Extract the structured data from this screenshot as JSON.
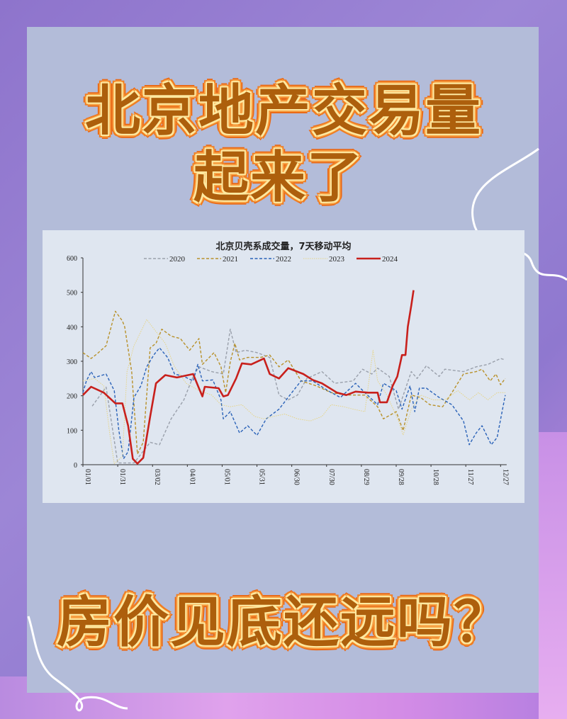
{
  "headline": {
    "line1": "北京地产交易量",
    "line2": "起来了",
    "line3": "房价见底还远吗？"
  },
  "colors": {
    "headline_text": "#ad5f0c",
    "headline_outline": "#ea6a17",
    "panel": "#b3bcd9",
    "background": "#8e74cc"
  },
  "chart_data": {
    "type": "line",
    "title": "北京贝壳系成交量，7天移动平均",
    "xlabel": "",
    "ylabel": "",
    "ylim": [
      0,
      600
    ],
    "yticks": [
      0,
      100,
      200,
      300,
      400,
      500,
      600
    ],
    "xticks": [
      "01/01",
      "01/31",
      "03/02",
      "04/01",
      "05/01",
      "05/31",
      "06/30",
      "07/30",
      "08/29",
      "09/28",
      "10/28",
      "11/27",
      "12/27"
    ],
    "grid": false,
    "legend": "top",
    "series": [
      {
        "name": "2020",
        "color": "#9aa0ab",
        "style": "dashed",
        "points": [
          [
            "01/09",
            170
          ],
          [
            "01/21",
            225
          ],
          [
            "01/31",
            5
          ],
          [
            "02/14",
            5
          ],
          [
            "02/28",
            65
          ],
          [
            "03/08",
            58
          ],
          [
            "03/18",
            133
          ],
          [
            "03/29",
            188
          ],
          [
            "04/06",
            256
          ],
          [
            "04/11",
            284
          ],
          [
            "04/22",
            270
          ],
          [
            "05/02",
            263
          ],
          [
            "05/08",
            393
          ],
          [
            "05/13",
            325
          ],
          [
            "05/21",
            332
          ],
          [
            "05/31",
            325
          ],
          [
            "06/11",
            311
          ],
          [
            "06/19",
            202
          ],
          [
            "06/27",
            188
          ],
          [
            "07/05",
            202
          ],
          [
            "07/13",
            250
          ],
          [
            "07/26",
            270
          ],
          [
            "08/06",
            236
          ],
          [
            "08/22",
            243
          ],
          [
            "08/30",
            277
          ],
          [
            "09/07",
            263
          ],
          [
            "09/12",
            280
          ],
          [
            "09/22",
            256
          ],
          [
            "09/30",
            161
          ],
          [
            "10/11",
            270
          ],
          [
            "10/16",
            250
          ],
          [
            "10/24",
            287
          ],
          [
            "11/04",
            256
          ],
          [
            "11/09",
            277
          ],
          [
            "11/25",
            270
          ],
          [
            "12/06",
            284
          ],
          [
            "12/16",
            291
          ],
          [
            "12/27",
            308
          ],
          [
            "12/31",
            304
          ]
        ]
      },
      {
        "name": "2021",
        "color": "#b8912a",
        "style": "dashed",
        "points": [
          [
            "01/01",
            325
          ],
          [
            "01/08",
            308
          ],
          [
            "01/13",
            321
          ],
          [
            "01/21",
            345
          ],
          [
            "01/27",
            421
          ],
          [
            "01/29",
            445
          ],
          [
            "02/04",
            417
          ],
          [
            "02/06",
            400
          ],
          [
            "02/12",
            270
          ],
          [
            "02/17",
            31
          ],
          [
            "02/22",
            65
          ],
          [
            "02/28",
            339
          ],
          [
            "03/05",
            352
          ],
          [
            "03/10",
            393
          ],
          [
            "03/18",
            373
          ],
          [
            "03/26",
            366
          ],
          [
            "04/03",
            332
          ],
          [
            "04/11",
            366
          ],
          [
            "04/14",
            291
          ],
          [
            "04/24",
            325
          ],
          [
            "04/30",
            284
          ],
          [
            "05/04",
            209
          ],
          [
            "05/08",
            298
          ],
          [
            "05/12",
            352
          ],
          [
            "05/16",
            304
          ],
          [
            "05/23",
            311
          ],
          [
            "06/03",
            311
          ],
          [
            "06/11",
            318
          ],
          [
            "06/19",
            284
          ],
          [
            "06/27",
            304
          ],
          [
            "07/08",
            243
          ],
          [
            "07/21",
            229
          ],
          [
            "08/03",
            209
          ],
          [
            "08/16",
            202
          ],
          [
            "09/01",
            202
          ],
          [
            "09/12",
            168
          ],
          [
            "09/17",
            133
          ],
          [
            "09/28",
            154
          ],
          [
            "10/04",
            99
          ],
          [
            "10/11",
            202
          ],
          [
            "10/19",
            195
          ],
          [
            "10/27",
            174
          ],
          [
            "11/07",
            168
          ],
          [
            "11/15",
            209
          ],
          [
            "11/25",
            263
          ],
          [
            "12/06",
            270
          ],
          [
            "12/11",
            277
          ],
          [
            "12/18",
            243
          ],
          [
            "12/23",
            263
          ],
          [
            "12/27",
            232
          ],
          [
            "12/31",
            250
          ]
        ]
      },
      {
        "name": "2022",
        "color": "#2a62b8",
        "style": "dashed",
        "points": [
          [
            "01/01",
            209
          ],
          [
            "01/04",
            243
          ],
          [
            "01/08",
            270
          ],
          [
            "01/11",
            253
          ],
          [
            "01/21",
            263
          ],
          [
            "01/28",
            215
          ],
          [
            "02/01",
            99
          ],
          [
            "02/05",
            17
          ],
          [
            "02/09",
            38
          ],
          [
            "02/14",
            195
          ],
          [
            "02/20",
            229
          ],
          [
            "02/25",
            284
          ],
          [
            "03/03",
            318
          ],
          [
            "03/08",
            339
          ],
          [
            "03/15",
            311
          ],
          [
            "03/21",
            263
          ],
          [
            "03/29",
            256
          ],
          [
            "04/06",
            243
          ],
          [
            "04/10",
            291
          ],
          [
            "04/14",
            243
          ],
          [
            "04/23",
            246
          ],
          [
            "04/30",
            188
          ],
          [
            "05/02",
            133
          ],
          [
            "05/08",
            154
          ],
          [
            "05/16",
            92
          ],
          [
            "05/23",
            113
          ],
          [
            "05/31",
            85
          ],
          [
            "06/08",
            133
          ],
          [
            "06/19",
            161
          ],
          [
            "06/30",
            209
          ],
          [
            "07/08",
            243
          ],
          [
            "07/18",
            243
          ],
          [
            "07/31",
            215
          ],
          [
            "08/11",
            195
          ],
          [
            "08/24",
            236
          ],
          [
            "09/01",
            209
          ],
          [
            "09/12",
            174
          ],
          [
            "09/17",
            236
          ],
          [
            "09/28",
            215
          ],
          [
            "10/03",
            161
          ],
          [
            "10/10",
            229
          ],
          [
            "10/14",
            154
          ],
          [
            "10/18",
            222
          ],
          [
            "10/24",
            222
          ],
          [
            "11/04",
            195
          ],
          [
            "11/15",
            174
          ],
          [
            "11/25",
            127
          ],
          [
            "11/30",
            58
          ],
          [
            "12/06",
            92
          ],
          [
            "12/11",
            113
          ],
          [
            "12/19",
            58
          ],
          [
            "12/24",
            79
          ],
          [
            "12/31",
            202
          ]
        ]
      },
      {
        "name": "2023",
        "color": "#e6d486",
        "style": "dotted",
        "points": [
          [
            "01/01",
            243
          ],
          [
            "01/11",
            250
          ],
          [
            "01/19",
            229
          ],
          [
            "01/24",
            92
          ],
          [
            "01/28",
            3
          ],
          [
            "02/04",
            24
          ],
          [
            "02/08",
            270
          ],
          [
            "02/14",
            345
          ],
          [
            "02/25",
            421
          ],
          [
            "03/05",
            386
          ],
          [
            "03/13",
            352
          ],
          [
            "03/21",
            284
          ],
          [
            "03/31",
            236
          ],
          [
            "04/11",
            215
          ],
          [
            "04/22",
            202
          ],
          [
            "04/30",
            174
          ],
          [
            "05/08",
            168
          ],
          [
            "05/18",
            174
          ],
          [
            "05/29",
            140
          ],
          [
            "06/06",
            133
          ],
          [
            "06/14",
            140
          ],
          [
            "06/24",
            147
          ],
          [
            "07/05",
            133
          ],
          [
            "07/16",
            127
          ],
          [
            "07/26",
            140
          ],
          [
            "08/03",
            174
          ],
          [
            "08/14",
            168
          ],
          [
            "08/22",
            161
          ],
          [
            "09/01",
            154
          ],
          [
            "09/08",
            332
          ],
          [
            "09/12",
            243
          ],
          [
            "09/20",
            202
          ],
          [
            "09/30",
            127
          ],
          [
            "10/04",
            86
          ],
          [
            "10/11",
            161
          ],
          [
            "10/19",
            202
          ],
          [
            "10/30",
            188
          ],
          [
            "11/09",
            188
          ],
          [
            "11/20",
            215
          ],
          [
            "11/30",
            188
          ],
          [
            "12/08",
            209
          ],
          [
            "12/16",
            188
          ],
          [
            "12/24",
            209
          ],
          [
            "12/31",
            209
          ]
        ]
      },
      {
        "name": "2024",
        "color": "#c8201c",
        "style": "solid",
        "points": [
          [
            "01/01",
            202
          ],
          [
            "01/08",
            226
          ],
          [
            "01/19",
            209
          ],
          [
            "01/29",
            178
          ],
          [
            "02/04",
            178
          ],
          [
            "02/09",
            113
          ],
          [
            "02/13",
            17
          ],
          [
            "02/17",
            3
          ],
          [
            "02/22",
            20
          ],
          [
            "02/28",
            140
          ],
          [
            "03/05",
            236
          ],
          [
            "03/13",
            260
          ],
          [
            "03/23",
            253
          ],
          [
            "04/06",
            263
          ],
          [
            "04/11",
            222
          ],
          [
            "04/14",
            198
          ],
          [
            "04/16",
            226
          ],
          [
            "04/28",
            222
          ],
          [
            "05/02",
            198
          ],
          [
            "05/06",
            202
          ],
          [
            "05/13",
            250
          ],
          [
            "05/18",
            294
          ],
          [
            "05/26",
            291
          ],
          [
            "06/06",
            308
          ],
          [
            "06/11",
            263
          ],
          [
            "06/19",
            250
          ],
          [
            "06/27",
            280
          ],
          [
            "07/10",
            263
          ],
          [
            "07/18",
            246
          ],
          [
            "07/26",
            236
          ],
          [
            "08/08",
            209
          ],
          [
            "08/16",
            202
          ],
          [
            "08/24",
            212
          ],
          [
            "09/04",
            209
          ],
          [
            "09/12",
            209
          ],
          [
            "09/14",
            181
          ],
          [
            "09/20",
            181
          ],
          [
            "09/25",
            229
          ],
          [
            "09/29",
            256
          ],
          [
            "10/03",
            318
          ],
          [
            "10/06",
            318
          ],
          [
            "10/08",
            400
          ],
          [
            "10/11",
            462
          ],
          [
            "10/13",
            506
          ]
        ]
      }
    ]
  }
}
